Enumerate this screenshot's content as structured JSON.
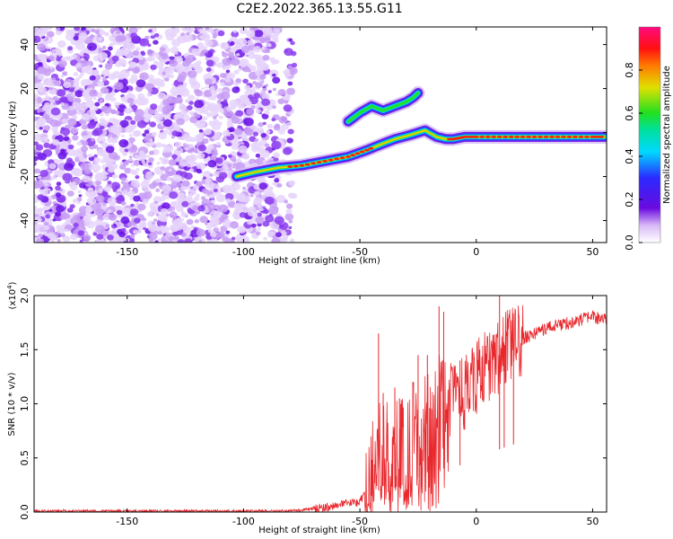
{
  "title": "C2E2.2022.365.13.55.G11",
  "chart_data": [
    {
      "type": "heatmap",
      "xlabel": "Height of straight line (km)",
      "ylabel": "Frequency (Hz)",
      "xlim": [
        -190,
        56
      ],
      "ylim": [
        -50,
        48
      ],
      "x_ticks": [
        -150,
        -100,
        -50,
        0,
        50
      ],
      "y_ticks": [
        -40,
        -20,
        0,
        20,
        40
      ],
      "noise_region_x": [
        -190,
        -78
      ],
      "signal_track": {
        "x": [
          -103,
          -95,
          -85,
          -75,
          -65,
          -55,
          -47,
          -40,
          -35,
          -28,
          -22,
          -17,
          -13,
          -10,
          -5,
          0,
          10,
          20,
          30,
          40,
          50,
          55
        ],
        "y": [
          -20,
          -18,
          -16,
          -15,
          -13,
          -11,
          -8,
          -5,
          -3,
          -1,
          1,
          -2,
          -3,
          -3,
          -2,
          -2,
          -2,
          -2,
          -2,
          -2,
          -2,
          -2
        ]
      },
      "branch": {
        "x": [
          -55,
          -50,
          -45,
          -40,
          -35,
          -30,
          -27,
          -25
        ],
        "y": [
          5,
          9,
          12,
          10,
          12,
          14,
          16,
          18
        ]
      },
      "colorbar": {
        "label": "Normalized spectral amplitude",
        "range": [
          0.0,
          1.0
        ],
        "ticks": [
          "0.0",
          "0.2",
          "0.4",
          "0.6",
          "0.8"
        ],
        "colormap": "rainbow (white→violet→blue→cyan→green→yellow→red→magenta)"
      }
    },
    {
      "type": "line",
      "xlabel": "Height of straight line (km)",
      "ylabel": "SNR (10 * v/v)",
      "y_multiplier_label": "(x10",
      "y_multiplier_exp": "4",
      "y_multiplier_close": ")",
      "xlim": [
        -190,
        56
      ],
      "ylim": [
        0.0,
        2.0
      ],
      "x_ticks": [
        -150,
        -100,
        -50,
        0,
        50
      ],
      "y_ticks": [
        "0.0",
        "0.5",
        "1.0",
        "1.5",
        "2.0"
      ],
      "color": "#e8282d",
      "series": [
        {
          "x": [
            -190,
            -150,
            -100,
            -80,
            -70,
            -60,
            -55,
            -50,
            -47,
            -45,
            -42,
            -40,
            -35,
            -30,
            -25,
            -20,
            -15,
            -10,
            -5,
            0,
            5,
            10,
            15,
            20,
            30,
            40,
            50,
            56
          ],
          "y": [
            0.01,
            0.01,
            0.01,
            0.01,
            0.03,
            0.06,
            0.08,
            0.1,
            0.2,
            0.35,
            0.5,
            0.6,
            0.55,
            0.6,
            0.8,
            0.95,
            1.0,
            1.05,
            1.1,
            1.25,
            1.35,
            1.45,
            1.55,
            1.6,
            1.7,
            1.75,
            1.8,
            1.78
          ],
          "spikes": [
            {
              "x": -42,
              "y": 1.65
            },
            {
              "x": -40,
              "y": 1.1
            },
            {
              "x": -35,
              "y": 1.15
            },
            {
              "x": -33,
              "y": 1.05
            },
            {
              "x": -25,
              "y": 1.45
            },
            {
              "x": -21,
              "y": 1.45
            },
            {
              "x": -16,
              "y": 1.9
            },
            {
              "x": -14,
              "y": 1.85
            },
            {
              "x": -7,
              "y": 1.4
            },
            {
              "x": 10,
              "y": 2.0
            },
            {
              "x": 12,
              "y": 1.5
            },
            {
              "x": 16,
              "y": 1.5
            }
          ]
        }
      ]
    }
  ]
}
